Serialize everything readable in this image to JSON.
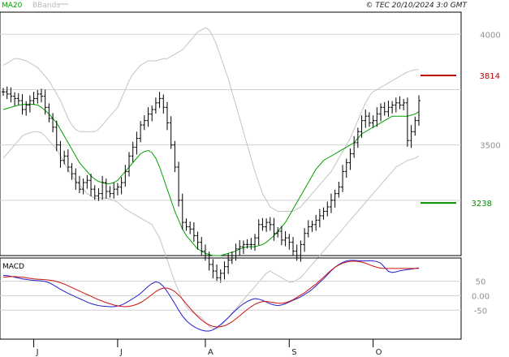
{
  "header": {
    "legend": [
      {
        "label": "MA20",
        "color": "#00a000"
      },
      {
        "label": "BBands",
        "color": "#b8b8b8"
      }
    ],
    "copyright": "© TEC 20/10/2024 3:0 GMT"
  },
  "colors": {
    "candles": "#000000",
    "ma20": "#00a000",
    "bbands": "#c4c4c4",
    "grid": "#d0d0d0",
    "resistance": "#c00000",
    "support": "#009000",
    "macd_line": "#2020d0",
    "signal_line": "#d01010",
    "axis_text": "#909090"
  },
  "chart_data": [
    {
      "type": "candlestick",
      "name": "price",
      "yticks": [
        3500,
        4000
      ],
      "ytick_labels": [
        "3500",
        "4000"
      ],
      "ylim": [
        3000,
        4100
      ],
      "grid": true,
      "x_ticks": [
        {
          "label": "J",
          "index": 8
        },
        {
          "label": "J",
          "index": 30
        },
        {
          "label": "A",
          "index": 53
        },
        {
          "label": "S",
          "index": 75
        },
        {
          "label": "O",
          "index": 97
        }
      ],
      "n_sessions": 110,
      "close": [
        3740,
        3730,
        3720,
        3710,
        3700,
        3660,
        3680,
        3700,
        3710,
        3730,
        3720,
        3670,
        3620,
        3580,
        3500,
        3430,
        3450,
        3400,
        3370,
        3330,
        3300,
        3330,
        3340,
        3300,
        3270,
        3280,
        3330,
        3290,
        3280,
        3300,
        3310,
        3330,
        3380,
        3450,
        3490,
        3530,
        3590,
        3610,
        3640,
        3660,
        3690,
        3710,
        3670,
        3600,
        3500,
        3400,
        3250,
        3150,
        3130,
        3120,
        3090,
        3060,
        3020,
        3000,
        2960,
        2930,
        2900,
        2920,
        2950,
        2980,
        3000,
        3030,
        3040,
        3050,
        3050,
        3050,
        3080,
        3140,
        3130,
        3150,
        3140,
        3100,
        3110,
        3070,
        3080,
        3060,
        3020,
        3000,
        3050,
        3100,
        3130,
        3140,
        3160,
        3180,
        3200,
        3220,
        3250,
        3280,
        3310,
        3380,
        3420,
        3460,
        3510,
        3560,
        3610,
        3630,
        3600,
        3610,
        3640,
        3670,
        3650,
        3670,
        3680,
        3690,
        3680,
        3690,
        3520,
        3560,
        3610,
        3700
      ],
      "ma20": [
        3660,
        3665,
        3670,
        3675,
        3680,
        3682,
        3684,
        3685,
        3683,
        3680,
        3670,
        3655,
        3640,
        3620,
        3600,
        3570,
        3540,
        3510,
        3480,
        3450,
        3420,
        3400,
        3380,
        3360,
        3345,
        3335,
        3330,
        3325,
        3325,
        3330,
        3340,
        3360,
        3380,
        3400,
        3420,
        3440,
        3460,
        3470,
        3475,
        3465,
        3440,
        3400,
        3350,
        3300,
        3250,
        3200,
        3160,
        3120,
        3090,
        3070,
        3050,
        3030,
        3020,
        3010,
        3005,
        3000,
        3000,
        3000,
        3005,
        3010,
        3015,
        3020,
        3030,
        3035,
        3040,
        3040,
        3040,
        3045,
        3050,
        3060,
        3075,
        3090,
        3110,
        3130,
        3150,
        3180,
        3210,
        3240,
        3270,
        3300,
        3330,
        3360,
        3390,
        3410,
        3430,
        3440,
        3450,
        3460,
        3470,
        3480,
        3490,
        3500,
        3510,
        3530,
        3550,
        3560,
        3570,
        3580,
        3590,
        3600,
        3610,
        3620,
        3630,
        3630,
        3630,
        3630,
        3630,
        3635,
        3640,
        3650
      ],
      "bb_upper": [
        3860,
        3870,
        3880,
        3890,
        3890,
        3885,
        3880,
        3870,
        3860,
        3850,
        3830,
        3810,
        3790,
        3760,
        3730,
        3700,
        3660,
        3620,
        3590,
        3570,
        3560,
        3560,
        3560,
        3560,
        3560,
        3570,
        3590,
        3610,
        3630,
        3650,
        3670,
        3710,
        3750,
        3790,
        3820,
        3840,
        3860,
        3870,
        3880,
        3880,
        3880,
        3885,
        3890,
        3890,
        3900,
        3910,
        3920,
        3930,
        3950,
        3970,
        3990,
        4010,
        4020,
        4030,
        4020,
        3990,
        3950,
        3900,
        3850,
        3800,
        3740,
        3680,
        3620,
        3560,
        3500,
        3440,
        3380,
        3330,
        3280,
        3250,
        3220,
        3210,
        3200,
        3200,
        3200,
        3200,
        3200,
        3210,
        3220,
        3240,
        3260,
        3280,
        3300,
        3320,
        3340,
        3360,
        3380,
        3410,
        3440,
        3470,
        3500,
        3530,
        3570,
        3610,
        3650,
        3690,
        3720,
        3740,
        3750,
        3760,
        3770,
        3780,
        3790,
        3800,
        3810,
        3820,
        3830,
        3835,
        3840,
        3840
      ],
      "bb_lower": [
        3440,
        3460,
        3480,
        3500,
        3520,
        3540,
        3550,
        3555,
        3560,
        3560,
        3555,
        3540,
        3520,
        3500,
        3480,
        3450,
        3420,
        3390,
        3360,
        3340,
        3320,
        3300,
        3280,
        3270,
        3260,
        3260,
        3260,
        3260,
        3255,
        3250,
        3240,
        3225,
        3210,
        3200,
        3190,
        3180,
        3170,
        3160,
        3150,
        3140,
        3110,
        3080,
        3030,
        2980,
        2930,
        2880,
        2840,
        2800,
        2770,
        2750,
        2740,
        2730,
        2720,
        2700,
        2680,
        2670,
        2670,
        2680,
        2700,
        2720,
        2740,
        2760,
        2780,
        2800,
        2820,
        2840,
        2860,
        2880,
        2900,
        2920,
        2930,
        2920,
        2910,
        2900,
        2890,
        2880,
        2880,
        2890,
        2900,
        2920,
        2940,
        2960,
        2980,
        3000,
        3020,
        3040,
        3060,
        3080,
        3100,
        3120,
        3140,
        3160,
        3180,
        3200,
        3220,
        3240,
        3260,
        3280,
        3300,
        3320,
        3340,
        3360,
        3380,
        3400,
        3410,
        3420,
        3430,
        3435,
        3440,
        3450
      ],
      "resistance": {
        "value": 3814,
        "label": "3814"
      },
      "support": {
        "value": 3238,
        "label": "3238"
      }
    },
    {
      "type": "line",
      "name": "MACD",
      "title": "MACD",
      "yticks": [
        50,
        0,
        -50
      ],
      "ytick_labels": [
        "50",
        "0.00",
        "-50"
      ],
      "ylim": [
        -150,
        130
      ],
      "series": [
        {
          "values": [
            70,
            69,
            67,
            64,
            61,
            58,
            56,
            54,
            53,
            52,
            51,
            49,
            45,
            38,
            30,
            22,
            15,
            8,
            2,
            -4,
            -10,
            -16,
            -22,
            -27,
            -31,
            -34,
            -36,
            -37,
            -38,
            -38,
            -36,
            -32,
            -26,
            -18,
            -10,
            -2,
            8,
            20,
            32,
            42,
            48,
            44,
            32,
            14,
            -6,
            -28,
            -50,
            -70,
            -86,
            -98,
            -107,
            -114,
            -119,
            -122,
            -122,
            -118,
            -110,
            -100,
            -88,
            -76,
            -62,
            -50,
            -38,
            -28,
            -20,
            -14,
            -10,
            -12,
            -16,
            -22,
            -28,
            -32,
            -34,
            -32,
            -28,
            -22,
            -16,
            -10,
            -4,
            4,
            12,
            22,
            34,
            46,
            58,
            72,
            86,
            98,
            108,
            115,
            120,
            122,
            122,
            121,
            120,
            120,
            121,
            120,
            118,
            112,
            98,
            84,
            80,
            82,
            86,
            88,
            90,
            92,
            94,
            96
          ]
        },
        {
          "values": [
            64,
            65,
            66,
            66,
            65,
            64,
            62,
            60,
            58,
            57,
            56,
            55,
            54,
            52,
            49,
            45,
            40,
            34,
            28,
            22,
            16,
            10,
            4,
            -2,
            -8,
            -14,
            -19,
            -24,
            -28,
            -32,
            -35,
            -37,
            -38,
            -37,
            -34,
            -30,
            -24,
            -16,
            -6,
            4,
            14,
            22,
            26,
            26,
            22,
            14,
            2,
            -12,
            -28,
            -44,
            -58,
            -72,
            -84,
            -94,
            -101,
            -106,
            -108,
            -107,
            -104,
            -98,
            -90,
            -80,
            -70,
            -58,
            -48,
            -38,
            -30,
            -24,
            -20,
            -20,
            -22,
            -24,
            -26,
            -26,
            -24,
            -20,
            -14,
            -6,
            2,
            10,
            20,
            30,
            40,
            52,
            64,
            76,
            88,
            98,
            106,
            112,
            116,
            118,
            119,
            118,
            116,
            112,
            107,
            102,
            98,
            95,
            94,
            94,
            94,
            94,
            94,
            94,
            94,
            94,
            94,
            94
          ]
        }
      ],
      "grid": true
    }
  ]
}
